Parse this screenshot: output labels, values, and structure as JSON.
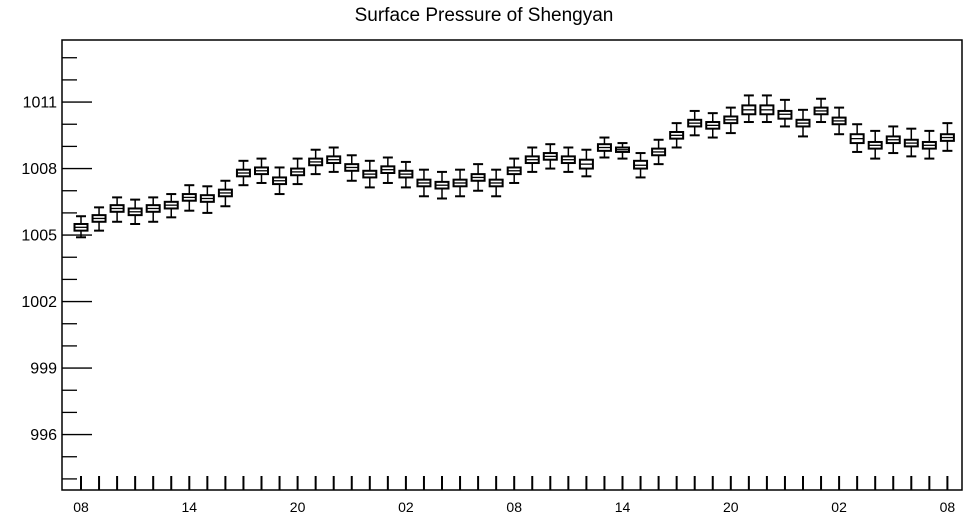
{
  "chart_data": {
    "type": "boxplot",
    "title": "Surface Pressure of Shengyan",
    "xlabel": "",
    "ylabel": "",
    "ylim": [
      993.5,
      1013.8
    ],
    "y_ticks": [
      "996",
      "999",
      "1002",
      "1005",
      "1008",
      "1011"
    ],
    "x_tick_labels": [
      "08",
      "14",
      "20",
      "02",
      "08",
      "14",
      "20",
      "02",
      "08"
    ],
    "x_tick_label_indices": [
      0,
      6,
      12,
      18,
      24,
      30,
      36,
      42,
      48
    ],
    "grid": false,
    "legend": "none",
    "box_color": "#000000",
    "series": [
      {
        "median": [
          1005.35,
          1005.75,
          1006.2,
          1006.05,
          1006.2,
          1006.35,
          1006.7,
          1006.65,
          1006.9,
          1007.8,
          1007.9,
          1007.45,
          1007.85,
          1008.3,
          1008.4,
          1008.05,
          1007.75,
          1007.95,
          1007.75,
          1007.35,
          1007.25,
          1007.35,
          1007.6,
          1007.35,
          1007.9,
          1008.4,
          1008.55,
          1008.4,
          1008.2,
          1008.95,
          1008.85,
          1008.15,
          1008.75,
          1009.5,
          1010.05,
          1009.95,
          1010.2,
          1010.65,
          1010.65,
          1010.45,
          1010.05,
          1010.6,
          1010.15,
          1009.35,
          1009.05,
          1009.3,
          1009.15,
          1009.05,
          1009.4
        ],
        "q1": [
          1005.2,
          1005.6,
          1006.05,
          1005.9,
          1006.05,
          1006.2,
          1006.55,
          1006.5,
          1006.75,
          1007.65,
          1007.75,
          1007.3,
          1007.7,
          1008.15,
          1008.25,
          1007.9,
          1007.6,
          1007.8,
          1007.6,
          1007.2,
          1007.1,
          1007.2,
          1007.45,
          1007.2,
          1007.75,
          1008.25,
          1008.4,
          1008.25,
          1008.0,
          1008.8,
          1008.75,
          1008.0,
          1008.6,
          1009.35,
          1009.9,
          1009.8,
          1010.05,
          1010.45,
          1010.45,
          1010.25,
          1009.9,
          1010.45,
          1010.0,
          1009.15,
          1008.9,
          1009.15,
          1009.0,
          1008.9,
          1009.25
        ],
        "q3": [
          1005.5,
          1005.9,
          1006.35,
          1006.2,
          1006.35,
          1006.5,
          1006.85,
          1006.8,
          1007.05,
          1007.95,
          1008.05,
          1007.6,
          1008.0,
          1008.45,
          1008.55,
          1008.2,
          1007.9,
          1008.1,
          1007.9,
          1007.5,
          1007.4,
          1007.5,
          1007.75,
          1007.5,
          1008.05,
          1008.55,
          1008.7,
          1008.55,
          1008.4,
          1009.1,
          1008.95,
          1008.35,
          1008.9,
          1009.65,
          1010.2,
          1010.1,
          1010.35,
          1010.85,
          1010.85,
          1010.6,
          1010.2,
          1010.75,
          1010.3,
          1009.55,
          1009.2,
          1009.45,
          1009.3,
          1009.2,
          1009.55
        ],
        "low": [
          1004.9,
          1005.2,
          1005.6,
          1005.5,
          1005.6,
          1005.8,
          1006.1,
          1006.0,
          1006.3,
          1007.25,
          1007.35,
          1006.85,
          1007.3,
          1007.75,
          1007.85,
          1007.45,
          1007.15,
          1007.35,
          1007.15,
          1006.75,
          1006.65,
          1006.75,
          1007.0,
          1006.75,
          1007.35,
          1007.85,
          1008.0,
          1007.85,
          1007.65,
          1008.5,
          1008.45,
          1007.6,
          1008.2,
          1008.95,
          1009.5,
          1009.4,
          1009.6,
          1010.1,
          1010.1,
          1009.9,
          1009.45,
          1010.1,
          1009.55,
          1008.75,
          1008.45,
          1008.7,
          1008.55,
          1008.45,
          1008.8
        ],
        "high": [
          1005.85,
          1006.25,
          1006.7,
          1006.6,
          1006.7,
          1006.85,
          1007.25,
          1007.2,
          1007.45,
          1008.35,
          1008.45,
          1008.05,
          1008.45,
          1008.85,
          1008.95,
          1008.6,
          1008.35,
          1008.5,
          1008.3,
          1007.95,
          1007.85,
          1007.95,
          1008.2,
          1007.95,
          1008.45,
          1008.95,
          1009.1,
          1008.95,
          1008.85,
          1009.4,
          1009.15,
          1008.7,
          1009.3,
          1010.05,
          1010.6,
          1010.5,
          1010.75,
          1011.3,
          1011.3,
          1011.1,
          1010.65,
          1011.15,
          1010.75,
          1010.0,
          1009.7,
          1009.9,
          1009.8,
          1009.7,
          1010.05
        ]
      }
    ]
  }
}
